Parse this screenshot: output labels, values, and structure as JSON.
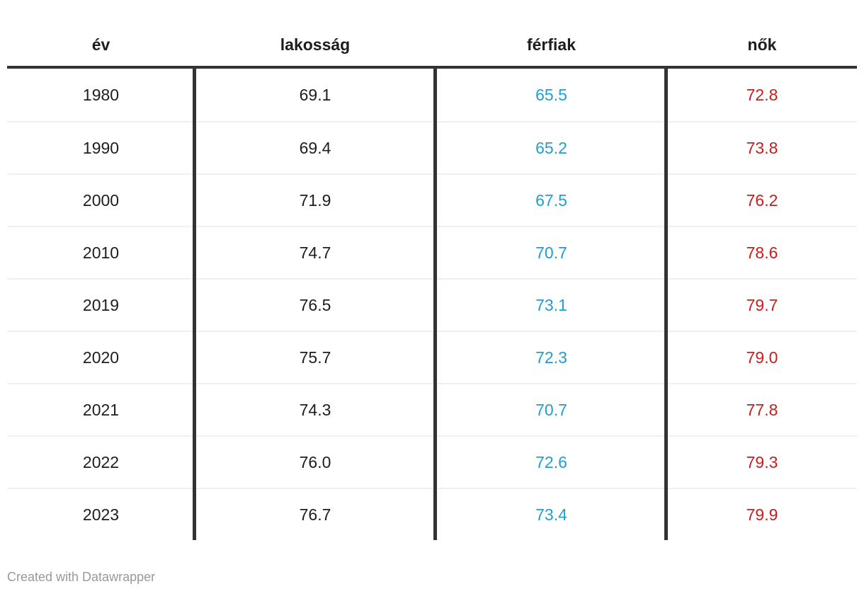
{
  "table": {
    "columns": [
      {
        "key": "ev",
        "label": "év"
      },
      {
        "key": "lakossag",
        "label": "lakosság"
      },
      {
        "key": "ferfiak",
        "label": "férfiak"
      },
      {
        "key": "nok",
        "label": "nők"
      }
    ],
    "rows": [
      {
        "ev": "1980",
        "lakossag": "69.1",
        "ferfiak": "65.5",
        "nok": "72.8"
      },
      {
        "ev": "1990",
        "lakossag": "69.4",
        "ferfiak": "65.2",
        "nok": "73.8"
      },
      {
        "ev": "2000",
        "lakossag": "71.9",
        "ferfiak": "67.5",
        "nok": "76.2"
      },
      {
        "ev": "2010",
        "lakossag": "74.7",
        "ferfiak": "70.7",
        "nok": "78.6"
      },
      {
        "ev": "2019",
        "lakossag": "76.5",
        "ferfiak": "73.1",
        "nok": "79.7"
      },
      {
        "ev": "2020",
        "lakossag": "75.7",
        "ferfiak": "72.3",
        "nok": "79.0"
      },
      {
        "ev": "2021",
        "lakossag": "74.3",
        "ferfiak": "70.7",
        "nok": "77.8"
      },
      {
        "ev": "2022",
        "lakossag": "76.0",
        "ferfiak": "72.6",
        "nok": "79.3"
      },
      {
        "ev": "2023",
        "lakossag": "76.7",
        "ferfiak": "73.4",
        "nok": "79.9"
      }
    ]
  },
  "footer": {
    "attribution": "Created with Datawrapper"
  },
  "colors": {
    "men_value": "#1f9fd0",
    "women_value": "#c71e1d",
    "text": "#1d1d1d",
    "header_border": "#333333",
    "column_divider": "#333333",
    "row_divider": "#f0f0f0",
    "attribution_text": "#999999"
  },
  "chart_data": {
    "type": "table",
    "title": "",
    "categories": [
      "1980",
      "1990",
      "2000",
      "2010",
      "2019",
      "2020",
      "2021",
      "2022",
      "2023"
    ],
    "series": [
      {
        "name": "lakosság",
        "values": [
          69.1,
          69.4,
          71.9,
          74.7,
          76.5,
          75.7,
          74.3,
          76.0,
          76.7
        ]
      },
      {
        "name": "férfiak",
        "values": [
          65.5,
          65.2,
          67.5,
          70.7,
          73.1,
          72.3,
          70.7,
          72.6,
          73.4
        ]
      },
      {
        "name": "nők",
        "values": [
          72.8,
          73.8,
          76.2,
          78.6,
          79.7,
          79.0,
          77.8,
          79.3,
          79.9
        ]
      }
    ],
    "legend_position": "none",
    "grid": "horizontal-row-dividers"
  }
}
